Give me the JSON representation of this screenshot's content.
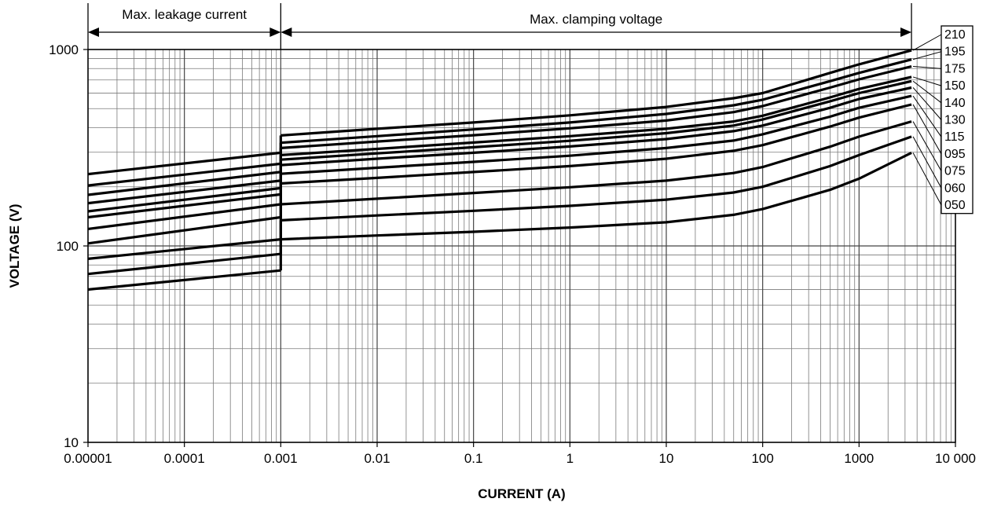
{
  "chart_data": {
    "type": "line",
    "title": "",
    "xlabel": "CURRENT (A)",
    "ylabel": "VOLTAGE (V)",
    "x_scale": "log",
    "y_scale": "log",
    "xlim": [
      1e-05,
      10000
    ],
    "ylim": [
      10,
      1000
    ],
    "grid": true,
    "x_tick_labels": [
      "0.00001",
      "0.0001",
      "0.001",
      "0.01",
      "0.1",
      "1",
      "10",
      "100",
      "1000",
      "10 000"
    ],
    "x_tick_values": [
      1e-05,
      0.0001,
      0.001,
      0.01,
      0.1,
      1,
      10,
      100,
      1000,
      10000
    ],
    "y_tick_labels": [
      "10",
      "100",
      "1000"
    ],
    "y_tick_values": [
      10,
      100,
      1000
    ],
    "legend_position": "right",
    "annotations": [
      {
        "text": "Max. leakage current",
        "x_range": [
          1e-05,
          0.001
        ]
      },
      {
        "text": "Max. clamping voltage",
        "x_range": [
          0.001,
          3500
        ]
      }
    ],
    "series": [
      {
        "name": "210",
        "leakage": [
          [
            1e-05,
            232
          ],
          [
            0.001,
            298
          ]
        ],
        "clamping": [
          [
            0.001,
            365
          ],
          [
            0.01,
            395
          ],
          [
            0.1,
            425
          ],
          [
            1,
            462
          ],
          [
            10,
            510
          ],
          [
            50,
            565
          ],
          [
            100,
            600
          ],
          [
            500,
            760
          ],
          [
            1000,
            840
          ],
          [
            3500,
            990
          ]
        ]
      },
      {
        "name": "195",
        "leakage": [
          [
            1e-05,
            203
          ],
          [
            0.001,
            262
          ]
        ],
        "clamping": [
          [
            0.001,
            335
          ],
          [
            0.01,
            362
          ],
          [
            0.1,
            392
          ],
          [
            1,
            425
          ],
          [
            10,
            470
          ],
          [
            50,
            520
          ],
          [
            100,
            555
          ],
          [
            500,
            690
          ],
          [
            1000,
            760
          ],
          [
            3500,
            890
          ]
        ]
      },
      {
        "name": "175",
        "leakage": [
          [
            1e-05,
            182
          ],
          [
            0.001,
            238
          ]
        ],
        "clamping": [
          [
            0.001,
            315
          ],
          [
            0.01,
            340
          ],
          [
            0.1,
            366
          ],
          [
            1,
            397
          ],
          [
            10,
            435
          ],
          [
            50,
            480
          ],
          [
            100,
            515
          ],
          [
            500,
            640
          ],
          [
            1000,
            705
          ],
          [
            3500,
            820
          ]
        ]
      },
      {
        "name": "150",
        "leakage": [
          [
            1e-05,
            165
          ],
          [
            0.001,
            215
          ]
        ],
        "clamping": [
          [
            0.001,
            290
          ],
          [
            0.01,
            312
          ],
          [
            0.1,
            336
          ],
          [
            1,
            362
          ],
          [
            10,
            395
          ],
          [
            50,
            430
          ],
          [
            100,
            460
          ],
          [
            500,
            570
          ],
          [
            1000,
            630
          ],
          [
            3500,
            725
          ]
        ]
      },
      {
        "name": "140",
        "leakage": [
          [
            1e-05,
            150
          ],
          [
            0.001,
            197
          ]
        ],
        "clamping": [
          [
            0.001,
            275
          ],
          [
            0.01,
            296
          ],
          [
            0.1,
            318
          ],
          [
            1,
            343
          ],
          [
            10,
            375
          ],
          [
            50,
            410
          ],
          [
            100,
            440
          ],
          [
            500,
            545
          ],
          [
            1000,
            600
          ],
          [
            3500,
            690
          ]
        ]
      },
      {
        "name": "130",
        "leakage": [
          [
            1e-05,
            140
          ],
          [
            0.001,
            183
          ]
        ],
        "clamping": [
          [
            0.001,
            258
          ],
          [
            0.01,
            278
          ],
          [
            0.1,
            298
          ],
          [
            1,
            321
          ],
          [
            10,
            350
          ],
          [
            50,
            384
          ],
          [
            100,
            410
          ],
          [
            500,
            505
          ],
          [
            1000,
            560
          ],
          [
            3500,
            640
          ]
        ]
      },
      {
        "name": "115",
        "leakage": [
          [
            1e-05,
            122
          ],
          [
            0.001,
            163
          ]
        ],
        "clamping": [
          [
            0.001,
            233
          ],
          [
            0.01,
            250
          ],
          [
            0.1,
            268
          ],
          [
            1,
            288
          ],
          [
            10,
            315
          ],
          [
            50,
            344
          ],
          [
            100,
            370
          ],
          [
            500,
            455
          ],
          [
            1000,
            505
          ],
          [
            3500,
            580
          ]
        ]
      },
      {
        "name": "095",
        "leakage": [
          [
            1e-05,
            103
          ],
          [
            0.001,
            140
          ]
        ],
        "clamping": [
          [
            0.001,
            208
          ],
          [
            0.01,
            222
          ],
          [
            0.1,
            238
          ],
          [
            1,
            255
          ],
          [
            10,
            278
          ],
          [
            50,
            305
          ],
          [
            100,
            326
          ],
          [
            500,
            405
          ],
          [
            1000,
            450
          ],
          [
            3500,
            525
          ]
        ]
      },
      {
        "name": "075",
        "leakage": [
          [
            1e-05,
            86
          ],
          [
            0.001,
            108
          ]
        ],
        "clamping": [
          [
            0.001,
            163
          ],
          [
            0.01,
            174
          ],
          [
            0.1,
            186
          ],
          [
            1,
            199
          ],
          [
            10,
            215
          ],
          [
            50,
            235
          ],
          [
            100,
            252
          ],
          [
            500,
            320
          ],
          [
            1000,
            360
          ],
          [
            3500,
            430
          ]
        ]
      },
      {
        "name": "060",
        "leakage": [
          [
            1e-05,
            72
          ],
          [
            0.001,
            91
          ]
        ],
        "clamping": [
          [
            0.001,
            135
          ],
          [
            0.01,
            143
          ],
          [
            0.1,
            151
          ],
          [
            1,
            160
          ],
          [
            10,
            172
          ],
          [
            50,
            187
          ],
          [
            100,
            200
          ],
          [
            500,
            255
          ],
          [
            1000,
            290
          ],
          [
            3500,
            360
          ]
        ]
      },
      {
        "name": "050",
        "leakage": [
          [
            1e-05,
            60
          ],
          [
            0.001,
            75
          ]
        ],
        "clamping": [
          [
            0.001,
            108
          ],
          [
            0.01,
            113
          ],
          [
            0.1,
            118
          ],
          [
            1,
            124
          ],
          [
            10,
            132
          ],
          [
            50,
            144
          ],
          [
            100,
            154
          ],
          [
            500,
            193
          ],
          [
            1000,
            220
          ],
          [
            3500,
            298
          ]
        ]
      }
    ]
  }
}
